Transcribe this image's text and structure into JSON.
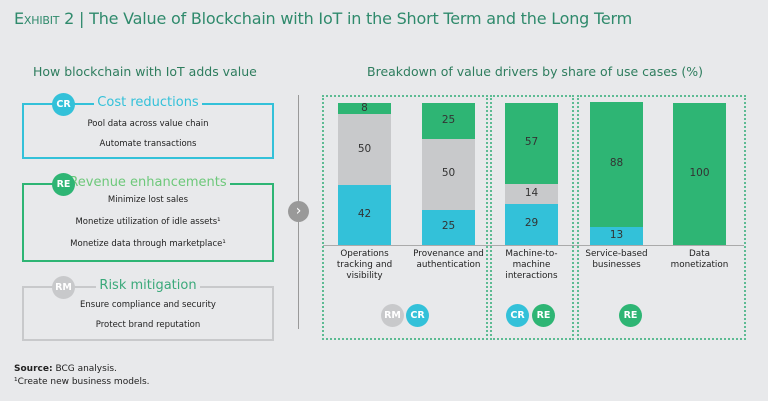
{
  "title": {
    "exhibit": "Exhibit 2",
    "separator": "|",
    "text": "The Value of Blockchain with IoT in the Short Term and the Long Term"
  },
  "left": {
    "heading": "How blockchain with IoT adds value",
    "groups": [
      {
        "badge": "CR",
        "title": "Cost reductions",
        "items": [
          "Pool data across value chain",
          "Automate transactions"
        ]
      },
      {
        "badge": "RE",
        "title": "Revenue enhancements",
        "items": [
          "Minimize lost sales",
          "Monetize utilization of idle assets¹",
          "Monetize data through marketplace¹"
        ]
      },
      {
        "badge": "RM",
        "title": "Risk mitigation",
        "items": [
          "Ensure compliance and security",
          "Protect brand reputation"
        ]
      }
    ]
  },
  "colors": {
    "CR": "#33c1d9",
    "RE": "#2eb574",
    "RM": "#c8c9cb",
    "title": "#2f8a6c"
  },
  "chart_data": {
    "type": "bar",
    "stacked": true,
    "title": "Breakdown of value drivers by share of use cases (%)",
    "categories": [
      "Operations tracking and visibility",
      "Provenance and authentication",
      "Machine-to-machine interactions",
      "Service-based businesses",
      "Data monetization"
    ],
    "series": [
      {
        "name": "CR",
        "values": [
          42,
          25,
          29,
          13,
          0
        ]
      },
      {
        "name": "RM",
        "values": [
          50,
          50,
          14,
          0,
          0
        ]
      },
      {
        "name": "RE",
        "values": [
          8,
          25,
          57,
          88,
          100
        ]
      }
    ],
    "ylim": [
      0,
      100
    ],
    "groups": [
      {
        "badges": [
          "RM",
          "CR"
        ]
      },
      {
        "badges": [
          "CR",
          "RE"
        ]
      },
      {
        "badges": [
          "RE"
        ]
      }
    ]
  },
  "footer": {
    "source_label": "Source:",
    "source": "BCG analysis.",
    "note": "¹Create new business models."
  }
}
